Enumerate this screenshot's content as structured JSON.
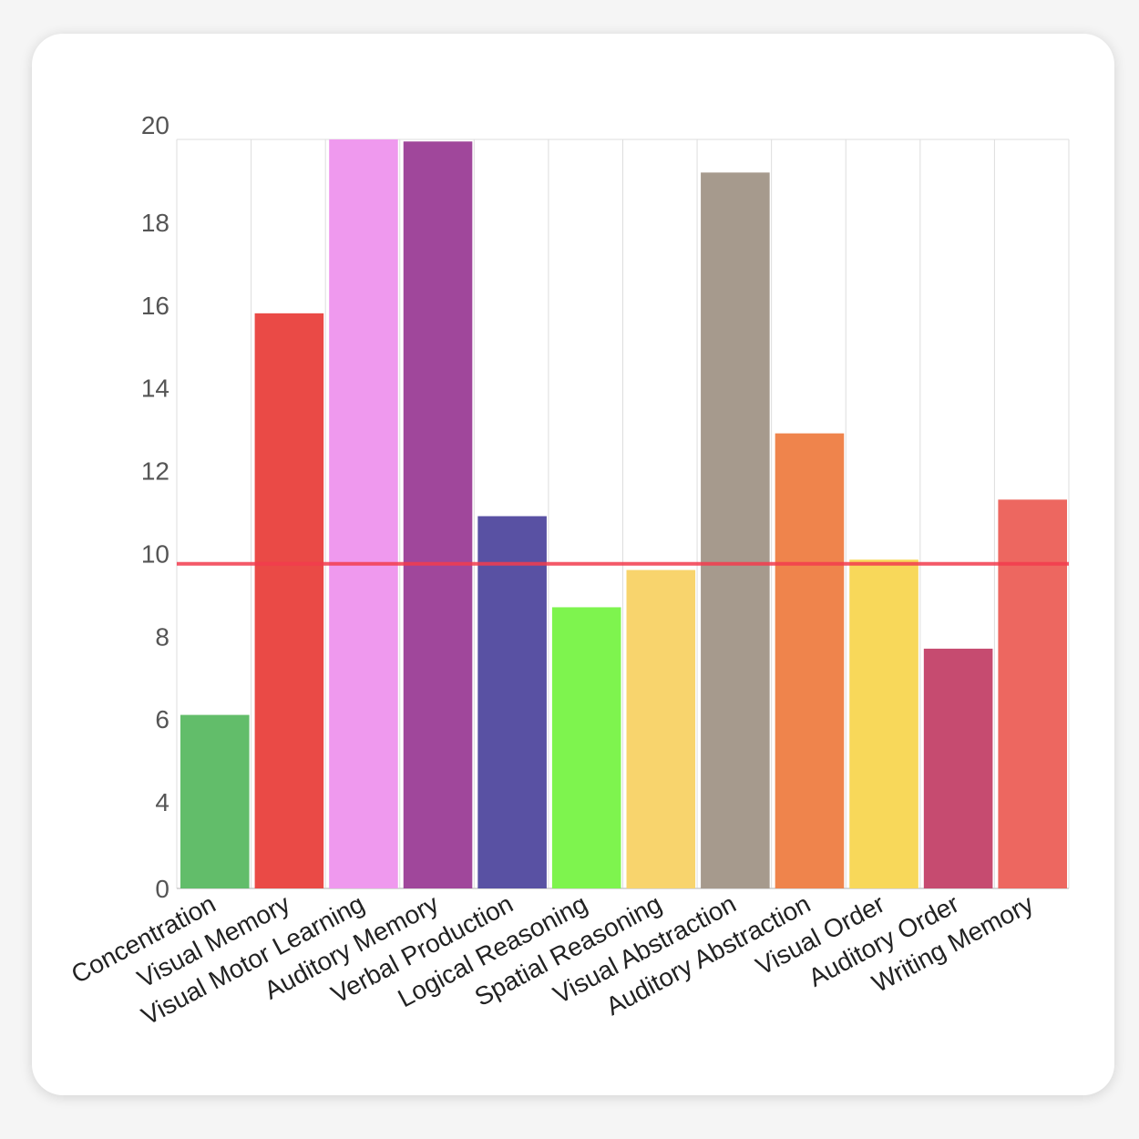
{
  "chart_data": {
    "type": "bar",
    "title": "",
    "xlabel": "",
    "ylabel": "",
    "categories": [
      "Concentration",
      "Visual Memory",
      "Visual Motor Learning",
      "Auditory Memory",
      "Verbal Production",
      "Logical Reasoning",
      "Spatial Reasoning",
      "Visual Abstraction",
      "Auditory Abstraction",
      "Visual Order",
      "Auditory Order",
      "Writing Memory"
    ],
    "values": [
      6.1,
      15.8,
      20,
      19.95,
      10.9,
      8.7,
      9.6,
      19.2,
      12.9,
      9.85,
      7.7,
      11.3
    ],
    "colors": [
      "#62bd6a",
      "#ea4a46",
      "#ef99ee",
      "#a0479b",
      "#5951a3",
      "#7ef44e",
      "#f8d46d",
      "#a69a8d",
      "#ef844c",
      "#f8d85a",
      "#c64b70",
      "#ed6760"
    ],
    "y_ticks": [
      0,
      4,
      6,
      8,
      10,
      12,
      14,
      16,
      18,
      20
    ],
    "ylim": [
      0,
      20
    ],
    "y_scale": "piecewise: 0-4 compressed, linear above 4",
    "reference_line": {
      "value": 9.75,
      "color": "#f23c4d"
    },
    "grid": "vertical lines between categories"
  }
}
